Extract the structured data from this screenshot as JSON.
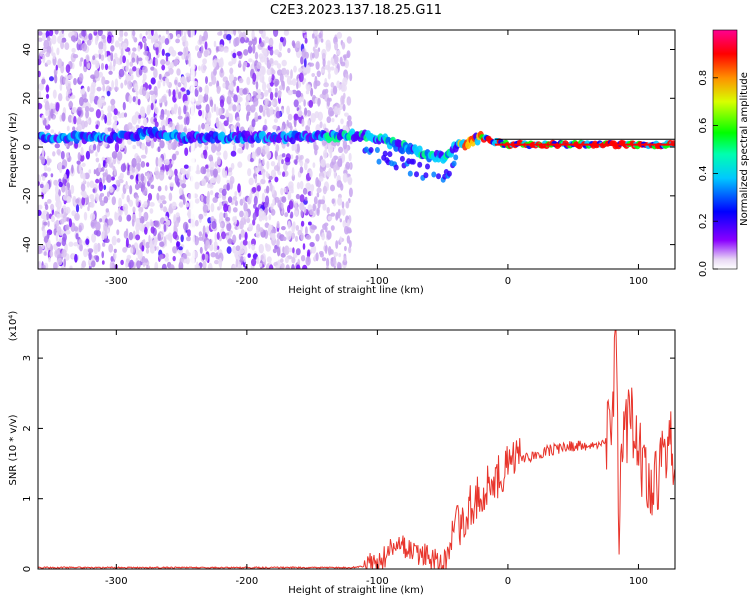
{
  "figure_title": "C2E3.2023.137.18.25.G11",
  "chart_data": [
    {
      "type": "heatmap",
      "title": "C2E3.2023.137.18.25.G11",
      "xlabel": "Height of straight line (km)",
      "ylabel": "Frequency (Hz)",
      "xlim": [
        -360,
        128
      ],
      "ylim": [
        -50,
        48
      ],
      "x_ticks": [
        -300,
        -200,
        -100,
        0,
        100
      ],
      "y_ticks": [
        -40,
        -20,
        0,
        20,
        40
      ],
      "grid": false,
      "colorbar": {
        "label": "Normalized spectral amplitude",
        "range": [
          0.0,
          1.0
        ],
        "ticks": [
          0.0,
          0.2,
          0.4,
          0.6,
          0.8
        ],
        "colormap": "rainbow (purple-blue-cyan-green-yellow-red-magenta)"
      },
      "features": {
        "broadband_noise_x_range": [
          -360,
          -120
        ],
        "main_trace": {
          "x": [
            -360,
            -300,
            -270,
            -250,
            -200,
            -150,
            -120,
            -100,
            -90,
            -80,
            -70,
            -60,
            -50,
            -40,
            -30,
            -20,
            -10,
            0,
            50,
            100,
            128
          ],
          "frequency_hz": [
            4,
            4,
            6,
            4,
            4,
            4,
            5,
            4,
            2,
            0,
            -2,
            -4,
            -4,
            0,
            2,
            4,
            2,
            1,
            1,
            1,
            1
          ]
        }
      }
    },
    {
      "type": "line",
      "xlabel": "Height of straight line (km)",
      "ylabel": "SNR (10 * v/v)",
      "y_multiplier": "(x10⁴)",
      "xlim": [
        -360,
        128
      ],
      "ylim": [
        0,
        3.4
      ],
      "x_ticks": [
        -300,
        -200,
        -100,
        0,
        100
      ],
      "y_ticks": [
        0,
        1,
        2,
        3
      ],
      "grid": false,
      "color": "#e8352c",
      "series": [
        {
          "x": [
            -360,
            -300,
            -250,
            -200,
            -150,
            -120,
            -105,
            -100,
            -90,
            -80,
            -70,
            -60,
            -50,
            -45,
            -40,
            -35,
            -30,
            -20,
            -10,
            0,
            10,
            20,
            30,
            40,
            50,
            60,
            70,
            75,
            80,
            83,
            85,
            88,
            95,
            105,
            115,
            120,
            128
          ],
          "values": [
            0.02,
            0.02,
            0.02,
            0.02,
            0.02,
            0.02,
            0.05,
            0.1,
            0.25,
            0.3,
            0.25,
            0.15,
            0.05,
            0.2,
            0.55,
            0.7,
            0.9,
            1.1,
            1.3,
            1.45,
            1.55,
            1.62,
            1.68,
            1.72,
            1.75,
            1.76,
            1.76,
            1.8,
            2.2,
            3.3,
            0.4,
            1.9,
            2.1,
            1.4,
            1.1,
            1.7,
            1.72
          ]
        }
      ]
    }
  ]
}
